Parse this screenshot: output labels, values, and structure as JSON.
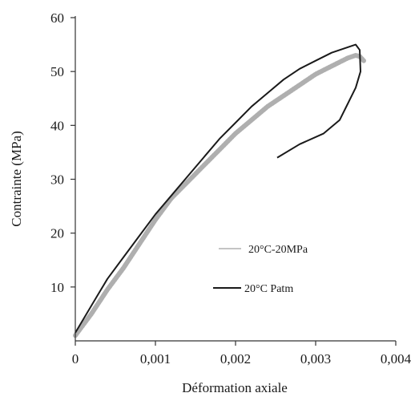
{
  "chart_data": {
    "type": "line",
    "xlabel": "Déformation axiale",
    "ylabel": "Contrainte (MPa)",
    "xlim": [
      0,
      0.004
    ],
    "ylim": [
      0,
      60
    ],
    "x_ticks": [
      0,
      0.001,
      0.002,
      0.003,
      0.004
    ],
    "x_tick_labels": [
      "0",
      "0,001",
      "0,002",
      "0,003",
      "0,004"
    ],
    "y_ticks": [
      10,
      20,
      30,
      40,
      50,
      60
    ],
    "y_tick_labels": [
      "10",
      "20",
      "30",
      "40",
      "50",
      "60"
    ],
    "grid": false,
    "legend_position": "center-right",
    "series": [
      {
        "name": "20°C-20MPa",
        "color": "#a6a6a6",
        "style": "thick-dotted",
        "x": [
          0,
          0.0002,
          0.0004,
          0.0006,
          0.0008,
          0.001,
          0.0012,
          0.0014,
          0.0016,
          0.0018,
          0.002,
          0.0022,
          0.0024,
          0.0026,
          0.0028,
          0.003,
          0.0032,
          0.0034,
          0.0035,
          0.00355,
          0.0036
        ],
        "values": [
          1,
          5,
          9.5,
          13.5,
          18,
          22.5,
          26.5,
          29.5,
          32.5,
          35.5,
          38.5,
          41,
          43.5,
          45.5,
          47.5,
          49.5,
          51,
          52.5,
          53,
          52.8,
          52
        ]
      },
      {
        "name": "20°C Patm",
        "color": "#1a1a1a",
        "style": "solid",
        "x": [
          0,
          0.0002,
          0.0004,
          0.0006,
          0.0008,
          0.001,
          0.0012,
          0.0014,
          0.0016,
          0.0018,
          0.002,
          0.0022,
          0.0024,
          0.0026,
          0.0028,
          0.003,
          0.0032,
          0.0034,
          0.0035,
          0.00355,
          0.00356,
          0.0035,
          0.0034,
          0.0033,
          0.0031,
          0.0028,
          0.00252
        ],
        "values": [
          1.5,
          6.5,
          11.5,
          15.5,
          19.5,
          23.5,
          27,
          30.5,
          34,
          37.5,
          40.5,
          43.5,
          46,
          48.5,
          50.5,
          52,
          53.5,
          54.5,
          55,
          54,
          50,
          47,
          44,
          41,
          38.5,
          36.5,
          34
        ]
      }
    ]
  }
}
